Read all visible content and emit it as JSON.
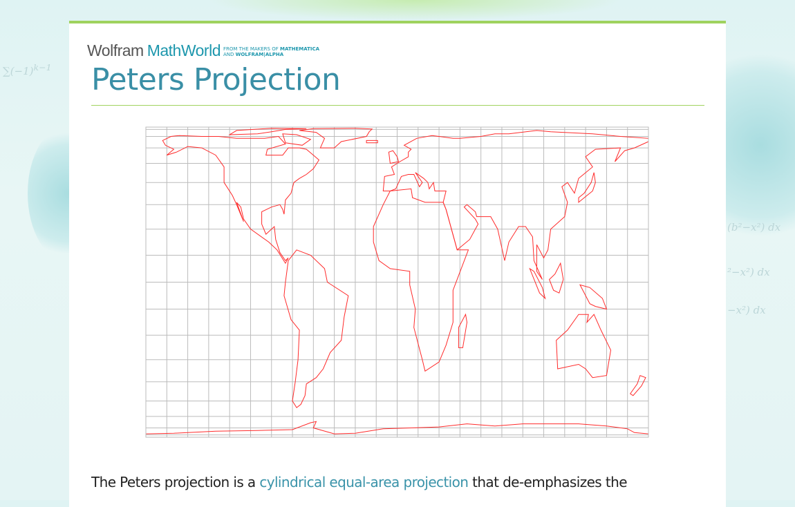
{
  "brand": {
    "wolfram": "Wolfram",
    "mathworld": "MathWorld",
    "tagline_line1_prefix": "FROM THE MAKERS OF ",
    "tagline_line1_bold": "MATHEMATICA",
    "tagline_line2_prefix": "AND ",
    "tagline_line2_bold": "WOLFRAM|ALPHA"
  },
  "page_title": "Peters Projection",
  "figure": {
    "type": "world map, Peters (cylindrical equal-area) projection",
    "coastline_color": "#ff2a2a",
    "grid_color": "#bbbbbb",
    "grid_lon_step_deg": 15,
    "grid_lat_step_deg": 10
  },
  "intro": {
    "before": "The Peters projection is a ",
    "link": "cylindrical equal-area projection",
    "after": " that de-emphasizes the"
  },
  "colors": {
    "accent": "#3a8fa6",
    "rule": "#9fd25e",
    "link": "#3a93a9"
  }
}
